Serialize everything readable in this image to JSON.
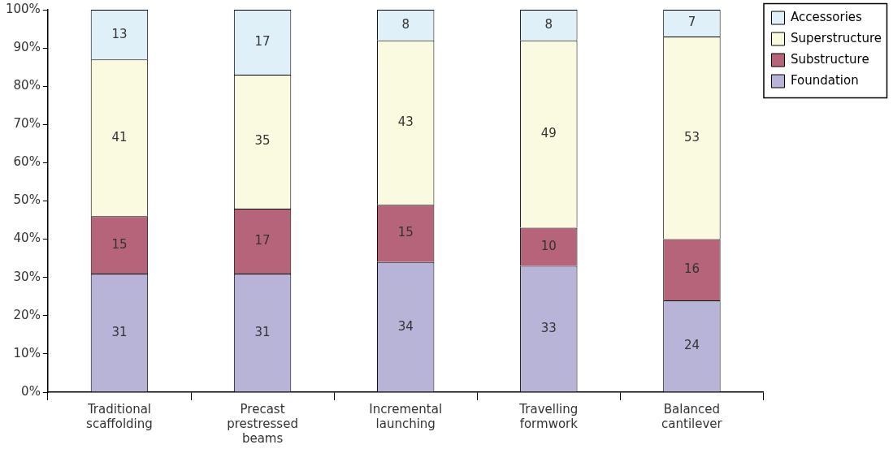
{
  "chart_data": {
    "type": "bar",
    "stacked": true,
    "categories": [
      "Traditional scaffolding",
      "Precast prestressed beams",
      "Incremental launching",
      "Travelling formwork",
      "Balanced cantilever"
    ],
    "series": [
      {
        "name": "Foundation",
        "color": "#b8b4d8",
        "values": [
          31,
          31,
          34,
          33,
          24
        ]
      },
      {
        "name": "Substructure",
        "color": "#b5647a",
        "values": [
          15,
          17,
          15,
          10,
          16
        ]
      },
      {
        "name": "Superstructure",
        "color": "#fafae0",
        "values": [
          41,
          35,
          43,
          49,
          53
        ]
      },
      {
        "name": "Accessories",
        "color": "#dff0f8",
        "values": [
          13,
          17,
          8,
          8,
          7
        ]
      }
    ],
    "ylim": [
      0,
      100
    ],
    "yticks": [
      {
        "value": 0,
        "label": "0%"
      },
      {
        "value": 10,
        "label": "10%"
      },
      {
        "value": 20,
        "label": "20%"
      },
      {
        "value": 30,
        "label": "30%"
      },
      {
        "value": 40,
        "label": "40%"
      },
      {
        "value": 50,
        "label": "50%"
      },
      {
        "value": 60,
        "label": "60%"
      },
      {
        "value": 70,
        "label": "70%"
      },
      {
        "value": 80,
        "label": "80%"
      },
      {
        "value": 90,
        "label": "90%"
      },
      {
        "value": 100,
        "label": "100%"
      }
    ],
    "grid": false,
    "legend": "top right",
    "data_labels": true
  }
}
